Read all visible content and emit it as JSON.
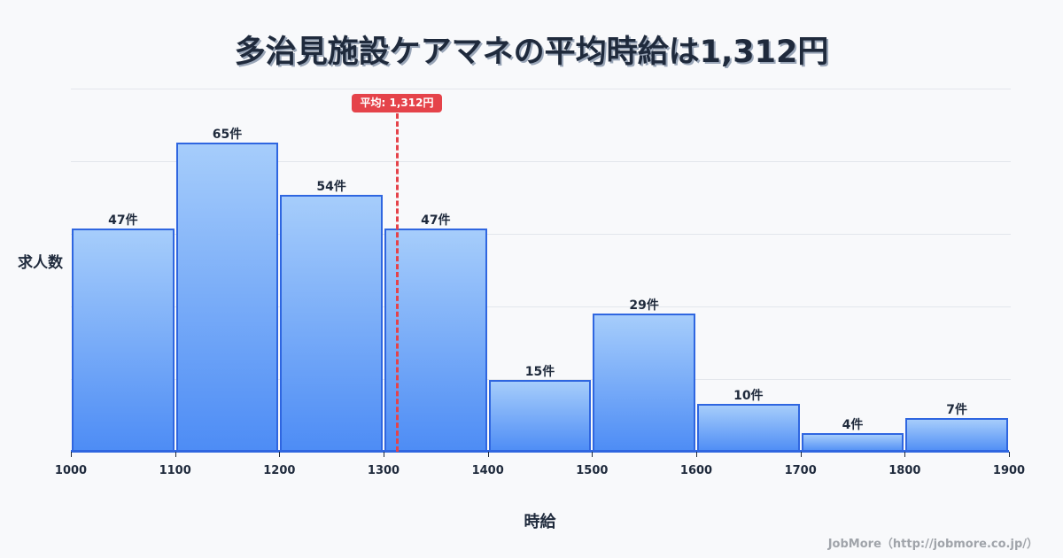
{
  "title": "多治見施設ケアマネの平均時給は1,312円",
  "mean_badge": "平均: 1,312円",
  "ylabel": "求人数",
  "xlabel": "時給",
  "credit": "JobMore（http://jobmore.co.jp/）",
  "bars": [
    {
      "label": "47件"
    },
    {
      "label": "65件"
    },
    {
      "label": "54件"
    },
    {
      "label": "47件"
    },
    {
      "label": "15件"
    },
    {
      "label": "29件"
    },
    {
      "label": "10件"
    },
    {
      "label": "4件"
    },
    {
      "label": "7件"
    }
  ],
  "ticks": [
    "1000",
    "1100",
    "1200",
    "1300",
    "1400",
    "1500",
    "1600",
    "1700",
    "1800",
    "1900"
  ],
  "colors": {
    "bar_top": "#a6cdfb",
    "bar_bottom": "#4d8cf5",
    "bar_border": "#2f66e0",
    "mean": "#e5434a",
    "text": "#1f2a3c"
  },
  "chart_data": {
    "type": "bar",
    "title": "多治見施設ケアマネの平均時給は1,312円",
    "xlabel": "時給",
    "ylabel": "求人数",
    "categories": [
      "1000-1100",
      "1100-1200",
      "1200-1300",
      "1300-1400",
      "1400-1500",
      "1500-1600",
      "1600-1700",
      "1700-1800",
      "1800-1900"
    ],
    "bin_edges": [
      1000,
      1100,
      1200,
      1300,
      1400,
      1500,
      1600,
      1700,
      1800,
      1900
    ],
    "values": [
      47,
      65,
      54,
      47,
      15,
      29,
      10,
      4,
      7
    ],
    "value_unit": "件",
    "annotations": [
      {
        "type": "vline",
        "x": 1312,
        "label": "平均: 1,312円",
        "style": "dashed",
        "color": "#e5434a"
      }
    ],
    "grid": true,
    "ylim": [
      0,
      76
    ]
  }
}
